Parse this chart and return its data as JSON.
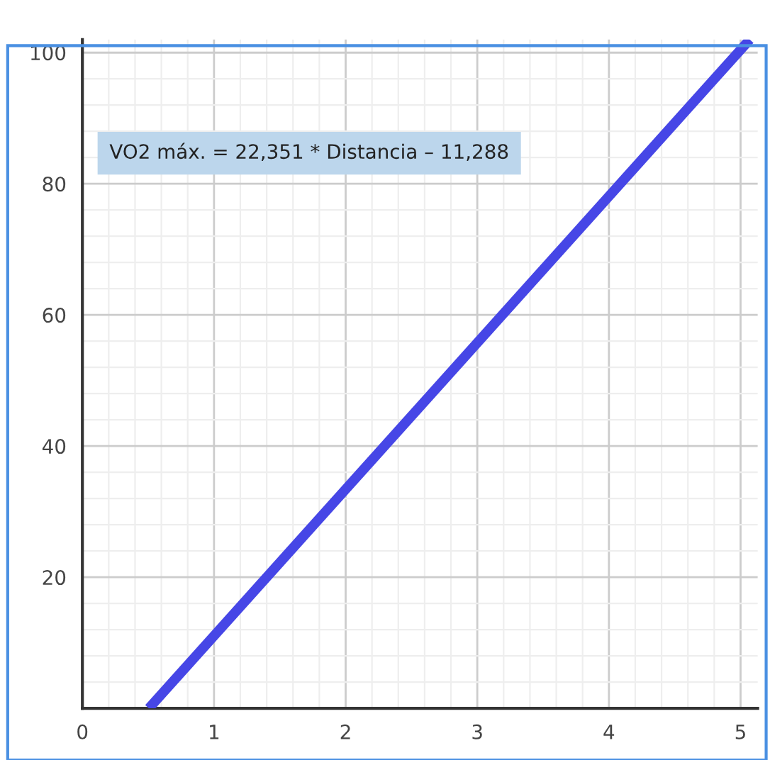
{
  "chart_data": {
    "type": "line",
    "x": [
      0.505,
      5.07
    ],
    "series": [
      {
        "color": "#4646e6",
        "values": [
          0,
          102
        ]
      }
    ],
    "xlim": [
      0,
      5.13
    ],
    "xticks": [
      0,
      1,
      2,
      3,
      4,
      5
    ],
    "ylim": [
      0,
      102
    ],
    "yticks": [
      20,
      40,
      60,
      80,
      100
    ],
    "grid": true,
    "marker": "none",
    "line_style": "solid",
    "annotations": [
      "VO2 máx. = 22,351 * Distancia – 11,288"
    ]
  }
}
